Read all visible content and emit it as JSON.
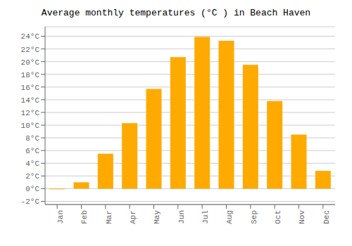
{
  "chart_data": {
    "type": "bar",
    "title": "Average monthly temperatures (°C ) in Beach Haven",
    "categories": [
      "Jan",
      "Feb",
      "Mar",
      "Apr",
      "May",
      "Jun",
      "Jul",
      "Aug",
      "Sep",
      "Oct",
      "Nov",
      "Dec"
    ],
    "values": [
      -0.1,
      1.0,
      5.5,
      10.3,
      15.7,
      20.7,
      23.9,
      23.3,
      19.5,
      13.8,
      8.5,
      2.8
    ],
    "color": "#FFAA00",
    "ylim": [
      -2.5,
      25.5
    ],
    "yticks": [
      {
        "value": -2,
        "label": "-2°C"
      },
      {
        "value": 0,
        "label": "0°C"
      },
      {
        "value": 2,
        "label": "2°C"
      },
      {
        "value": 4,
        "label": "4°C"
      },
      {
        "value": 6,
        "label": "6°C"
      },
      {
        "value": 8,
        "label": "8°C"
      },
      {
        "value": 10,
        "label": "10°C"
      },
      {
        "value": 12,
        "label": "12°C"
      },
      {
        "value": 14,
        "label": "14°C"
      },
      {
        "value": 16,
        "label": "16°C"
      },
      {
        "value": 18,
        "label": "18°C"
      },
      {
        "value": 20,
        "label": "20°C"
      },
      {
        "value": 22,
        "label": "22°C"
      },
      {
        "value": 24,
        "label": "24°C"
      }
    ],
    "grid": true
  }
}
